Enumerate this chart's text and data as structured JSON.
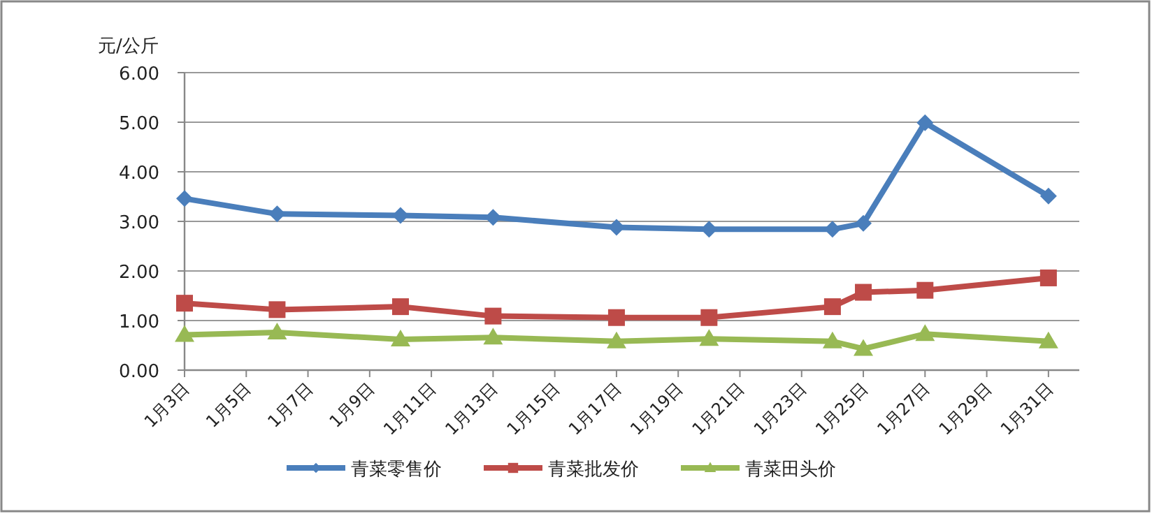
{
  "chart_data": {
    "type": "line",
    "ylabel": "元/公斤",
    "x": [
      "--01-03",
      "--01-06",
      "--01-10",
      "--01-13",
      "--01-17",
      "--01-20",
      "--01-24",
      "--01-25",
      "--01-27",
      "--01-31"
    ],
    "series": [
      {
        "name": "青菜零售价",
        "color": "#4a7ebb",
        "marker": "diamond",
        "values": [
          3.46,
          3.15,
          3.12,
          3.08,
          2.88,
          2.84,
          2.84,
          2.96,
          4.99,
          3.51
        ]
      },
      {
        "name": "青菜批发价",
        "color": "#be4b48",
        "marker": "square",
        "values": [
          1.35,
          1.22,
          1.28,
          1.09,
          1.06,
          1.06,
          1.28,
          1.57,
          1.61,
          1.86
        ]
      },
      {
        "name": "青菜田头价",
        "color": "#98b954",
        "marker": "triangle",
        "values": [
          0.71,
          0.76,
          0.62,
          0.66,
          0.58,
          0.63,
          0.58,
          0.43,
          0.73,
          0.58
        ]
      }
    ],
    "xlim": [
      "--01-03",
      "--02-01"
    ],
    "xticks": [
      {
        "value": "--01-03",
        "label": "1月3日"
      },
      {
        "value": "--01-05",
        "label": "1月5日"
      },
      {
        "value": "--01-07",
        "label": "1月7日"
      },
      {
        "value": "--01-09",
        "label": "1月9日"
      },
      {
        "value": "--01-11",
        "label": "1月11日"
      },
      {
        "value": "--01-13",
        "label": "1月13日"
      },
      {
        "value": "--01-15",
        "label": "1月15日"
      },
      {
        "value": "--01-17",
        "label": "1月17日"
      },
      {
        "value": "--01-19",
        "label": "1月19日"
      },
      {
        "value": "--01-21",
        "label": "1月21日"
      },
      {
        "value": "--01-23",
        "label": "1月23日"
      },
      {
        "value": "--01-25",
        "label": "1月25日"
      },
      {
        "value": "--01-27",
        "label": "1月27日"
      },
      {
        "value": "--01-29",
        "label": "1月29日"
      },
      {
        "value": "--01-31",
        "label": "1月31日"
      }
    ],
    "ylim": [
      0,
      6
    ],
    "yticks": [
      {
        "value": 0,
        "label": "0.00"
      },
      {
        "value": 1,
        "label": "1.00"
      },
      {
        "value": 2,
        "label": "2.00"
      },
      {
        "value": 3,
        "label": "3.00"
      },
      {
        "value": 4,
        "label": "4.00"
      },
      {
        "value": 5,
        "label": "5.00"
      },
      {
        "value": 6,
        "label": "6.00"
      }
    ],
    "grid": "y",
    "legend": "bottom",
    "line_style": "solid"
  }
}
